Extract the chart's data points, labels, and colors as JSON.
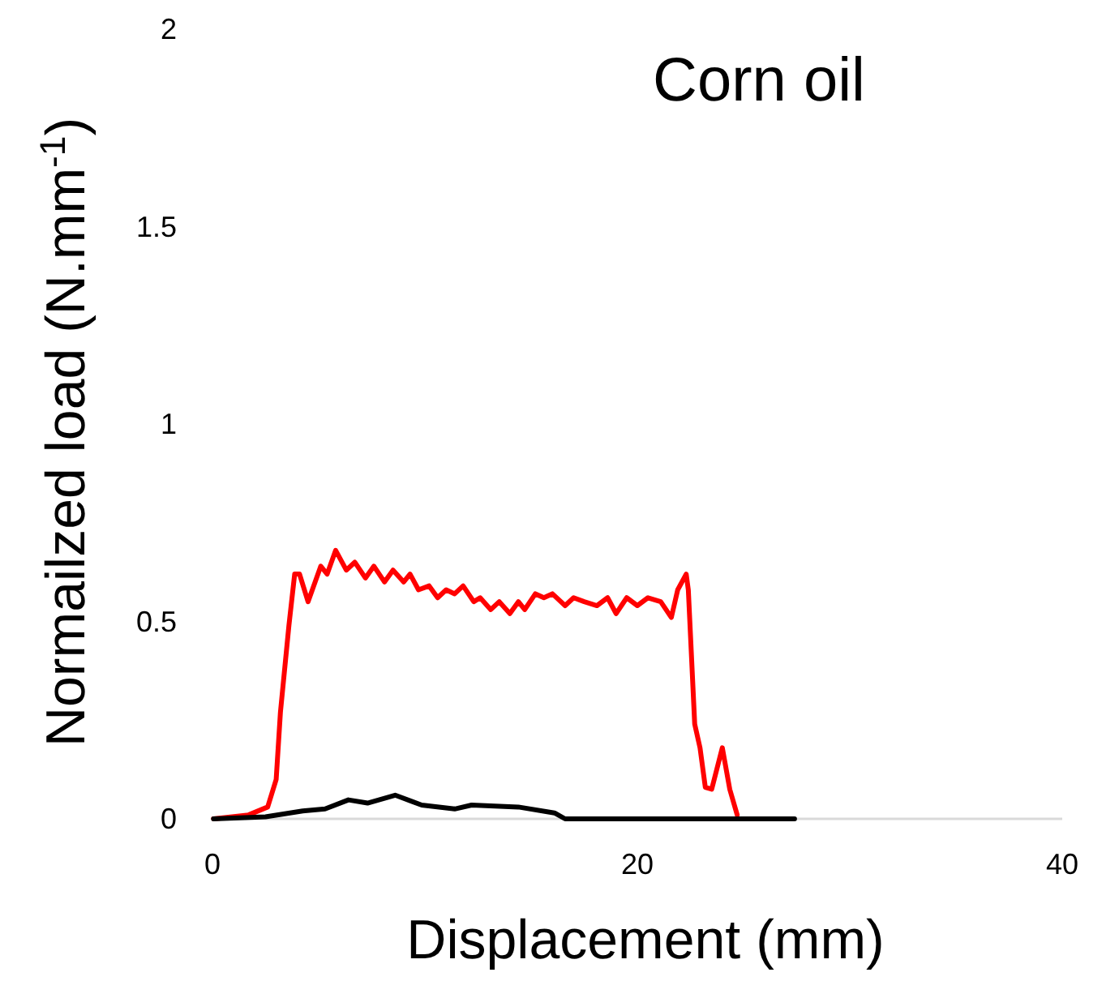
{
  "chart_data": {
    "type": "line",
    "title": "Corn oil",
    "xlabel": "Displacement (mm)",
    "ylabel": "Normailzed load (N.mm$^{-1}$)",
    "xlim": [
      0,
      40
    ],
    "ylim": [
      0,
      2
    ],
    "xticks": [
      0,
      20,
      40
    ],
    "yticks": [
      0,
      0.5,
      1,
      1.5,
      2
    ],
    "grid": false,
    "marker": "none",
    "line_style": "solid",
    "series": [
      {
        "color": "#ff0000",
        "x": [
          0.05,
          1.7,
          2.6,
          3.0,
          3.2,
          3.6,
          3.87,
          4.1,
          4.5,
          5.1,
          5.4,
          5.8,
          6.3,
          6.7,
          7.2,
          7.6,
          8.1,
          8.5,
          9.0,
          9.3,
          9.7,
          10.2,
          10.6,
          11.0,
          11.4,
          11.8,
          12.3,
          12.6,
          13.1,
          13.5,
          14.0,
          14.4,
          14.7,
          15.2,
          15.6,
          16.0,
          16.6,
          17.0,
          17.5,
          18.1,
          18.6,
          19.0,
          19.5,
          20.0,
          20.5,
          21.1,
          21.6,
          21.9,
          22.3,
          22.4,
          22.7,
          22.95,
          23.2,
          23.5,
          24.0,
          24.35,
          24.7
        ],
        "values": [
          0,
          0.01,
          0.03,
          0.1,
          0.27,
          0.49,
          0.62,
          0.62,
          0.55,
          0.64,
          0.62,
          0.68,
          0.63,
          0.65,
          0.61,
          0.64,
          0.6,
          0.63,
          0.6,
          0.62,
          0.58,
          0.59,
          0.56,
          0.58,
          0.57,
          0.59,
          0.55,
          0.56,
          0.53,
          0.55,
          0.52,
          0.55,
          0.53,
          0.57,
          0.56,
          0.57,
          0.54,
          0.56,
          0.55,
          0.54,
          0.56,
          0.52,
          0.56,
          0.54,
          0.56,
          0.55,
          0.51,
          0.58,
          0.62,
          0.58,
          0.24,
          0.18,
          0.08,
          0.075,
          0.18,
          0.075,
          0.01
        ]
      },
      {
        "color": "#000000",
        "x": [
          0.05,
          2.5,
          4.25,
          5.3,
          6.4,
          7.3,
          8.6,
          9.85,
          11.4,
          12.2,
          14.4,
          16.1,
          16.6,
          20,
          24,
          27.4
        ],
        "values": [
          0,
          0.005,
          0.02,
          0.025,
          0.048,
          0.04,
          0.06,
          0.035,
          0.025,
          0.035,
          0.03,
          0.015,
          0,
          0,
          0,
          0
        ]
      }
    ]
  }
}
